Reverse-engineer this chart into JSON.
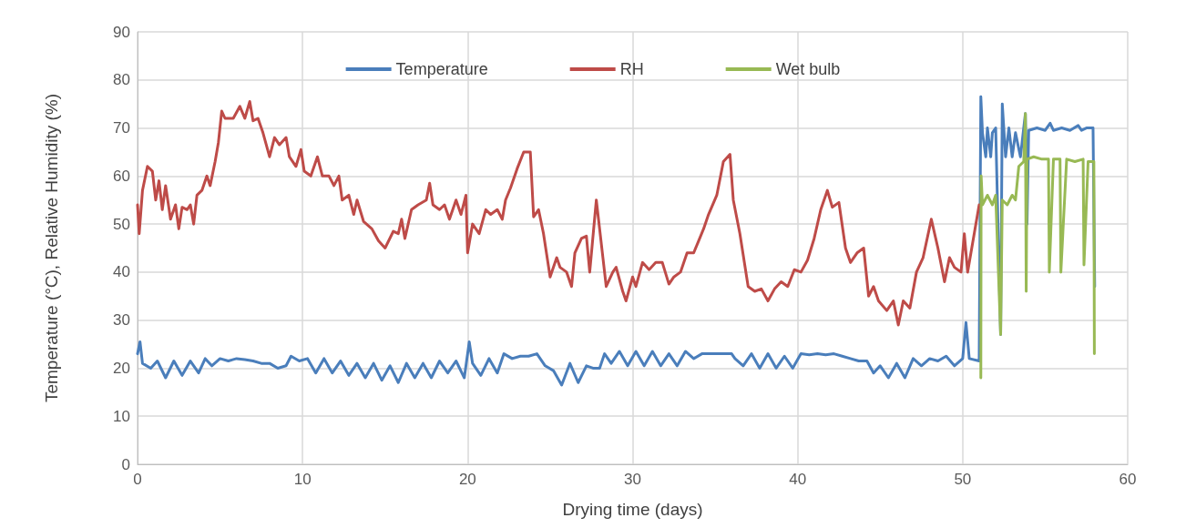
{
  "chart_data": {
    "type": "line",
    "xlabel": "Drying time (days)",
    "ylabel": "Temperature (°C), Relative Humidity (%)",
    "xlim": [
      0,
      60
    ],
    "xticks": [
      0,
      10,
      20,
      30,
      40,
      50,
      60
    ],
    "ylim": [
      0,
      90
    ],
    "yticks": [
      0,
      10,
      20,
      30,
      40,
      50,
      60,
      70,
      80,
      90
    ],
    "grid": true,
    "legend": "top",
    "marker": "none",
    "line_style": "solid",
    "series": [
      {
        "name": "Temperature",
        "color": "#4a7ebb",
        "x": [
          0,
          0.15,
          0.3,
          0.8,
          1.2,
          1.7,
          2.2,
          2.7,
          3.2,
          3.7,
          4.1,
          4.5,
          5,
          5.5,
          6,
          6.5,
          7,
          7.5,
          8,
          8.5,
          9,
          9.3,
          9.8,
          10.3,
          10.8,
          11.3,
          11.8,
          12.3,
          12.8,
          13.3,
          13.8,
          14.3,
          14.8,
          15.3,
          15.8,
          16.3,
          16.8,
          17.3,
          17.8,
          18.3,
          18.8,
          19.3,
          19.8,
          20.1,
          20.3,
          20.8,
          21.3,
          21.8,
          22.2,
          22.7,
          23.2,
          23.7,
          24.2,
          24.7,
          25.2,
          25.7,
          26.2,
          26.7,
          27.2,
          27.6,
          28,
          28.3,
          28.7,
          29.2,
          29.7,
          30.2,
          30.7,
          31.2,
          31.7,
          32.2,
          32.7,
          33.2,
          33.7,
          34.2,
          34.7,
          35.5,
          36,
          36.2,
          36.7,
          37.2,
          37.7,
          38.2,
          38.7,
          39.2,
          39.7,
          40.2,
          40.7,
          41.2,
          41.7,
          42.2,
          42.7,
          43.2,
          43.7,
          44.2,
          44.6,
          45,
          45.5,
          46,
          46.5,
          47,
          47.5,
          48,
          48.5,
          49,
          49.5,
          50,
          50.2,
          50.4,
          51,
          51.1,
          51.2,
          51.4,
          51.5,
          51.7,
          51.8,
          52,
          52.3,
          52.4,
          52.6,
          52.8,
          53,
          53.2,
          53.5,
          53.8,
          53.9,
          54,
          54.5,
          55,
          55.3,
          55.5,
          56,
          56.5,
          57,
          57.2,
          57.5,
          57.9,
          58,
          58.02
        ],
        "values": [
          23,
          25.5,
          21,
          20,
          21.5,
          18,
          21.5,
          18.5,
          21.5,
          19,
          22,
          20.5,
          22,
          21.5,
          22,
          21.8,
          21.5,
          21,
          21,
          20,
          20.5,
          22.5,
          21.5,
          22,
          19,
          22,
          19,
          21.5,
          18.5,
          21,
          18,
          21,
          17.5,
          20.5,
          17,
          21,
          18,
          21,
          18,
          21.5,
          19,
          21.5,
          18,
          25.5,
          21,
          18.5,
          22,
          19,
          23,
          22,
          22.5,
          22.5,
          23,
          20.5,
          19.5,
          16.5,
          21,
          17,
          20.5,
          20,
          20,
          23,
          21,
          23.5,
          20.5,
          23.5,
          20.5,
          23.5,
          20.5,
          23,
          20.5,
          23.5,
          22,
          23,
          23,
          23,
          23,
          22,
          20.5,
          23,
          20,
          23,
          20,
          22.5,
          20,
          23,
          22.8,
          23,
          22.8,
          23,
          22.5,
          22,
          21.5,
          21.5,
          19,
          20.5,
          18,
          21,
          18,
          22,
          20.5,
          22,
          21.5,
          22.5,
          20.5,
          22,
          29.5,
          22,
          21.5,
          76.5,
          69,
          64,
          70,
          64,
          69,
          70,
          27,
          75,
          64,
          70,
          64,
          69,
          64,
          73,
          50,
          69.5,
          70,
          69.5,
          71,
          69.5,
          70,
          69.5,
          70.5,
          69.5,
          70,
          70,
          37,
          37
        ]
      },
      {
        "name": "RH",
        "color": "#be4b48",
        "x": [
          0,
          0.1,
          0.3,
          0.6,
          0.9,
          1.1,
          1.3,
          1.5,
          1.7,
          2,
          2.3,
          2.5,
          2.7,
          3,
          3.2,
          3.4,
          3.6,
          3.9,
          4.2,
          4.4,
          4.7,
          4.9,
          5.1,
          5.3,
          5.8,
          6.2,
          6.5,
          6.8,
          7,
          7.3,
          7.6,
          8,
          8.3,
          8.6,
          9,
          9.2,
          9.6,
          9.9,
          10.1,
          10.5,
          10.9,
          11.2,
          11.6,
          11.9,
          12.2,
          12.4,
          12.8,
          13.1,
          13.3,
          13.7,
          14.2,
          14.6,
          15,
          15.5,
          15.8,
          16,
          16.2,
          16.6,
          17,
          17.5,
          17.7,
          17.9,
          18.3,
          18.6,
          18.9,
          19.3,
          19.6,
          19.9,
          20,
          20.3,
          20.7,
          21.1,
          21.4,
          21.8,
          22.1,
          22.3,
          22.6,
          23,
          23.4,
          23.8,
          24,
          24.3,
          24.6,
          25,
          25.4,
          25.6,
          26,
          26.3,
          26.5,
          26.9,
          27.2,
          27.4,
          27.8,
          28.2,
          28.4,
          28.8,
          29,
          29.4,
          29.6,
          30,
          30.2,
          30.6,
          31,
          31.4,
          31.8,
          32.2,
          32.5,
          32.9,
          33.3,
          33.7,
          34,
          34.3,
          34.6,
          35.1,
          35.5,
          35.9,
          36.1,
          36.5,
          37,
          37.4,
          37.8,
          38.2,
          38.6,
          39,
          39.4,
          39.8,
          40.2,
          40.6,
          41,
          41.4,
          41.8,
          42.1,
          42.5,
          42.9,
          43.2,
          43.6,
          44,
          44.3,
          44.6,
          44.9,
          45.4,
          45.8,
          46.1,
          46.4,
          46.8,
          47.2,
          47.6,
          48.1,
          48.5,
          48.9,
          49.2,
          49.5,
          49.9,
          50.1,
          50.3,
          50.8,
          51
        ],
        "values": [
          54,
          48,
          57,
          62,
          61,
          55,
          59,
          53,
          58,
          51,
          54,
          49,
          53.5,
          53,
          54,
          50,
          56,
          57,
          60,
          58,
          63,
          67,
          73.5,
          72,
          72,
          74.5,
          72,
          75.5,
          71.5,
          72,
          69,
          64,
          68,
          66.5,
          68,
          64,
          62,
          65.5,
          61,
          60,
          64,
          60,
          60,
          58,
          60,
          55,
          56,
          52,
          55,
          50.5,
          49,
          46.5,
          45,
          48.5,
          48,
          51,
          47,
          53,
          54,
          55,
          58.5,
          54,
          53,
          54,
          51,
          55,
          52,
          56,
          44,
          50,
          48,
          53,
          52,
          53,
          51,
          55,
          57.5,
          61.5,
          65,
          65,
          51.5,
          53,
          48,
          39,
          43,
          41,
          40,
          37,
          44,
          47,
          47.5,
          40,
          55,
          43,
          37,
          40,
          41,
          36,
          34,
          39,
          37,
          42,
          40.5,
          42,
          42,
          37.5,
          39,
          40,
          44,
          44,
          46.5,
          49,
          52,
          56,
          63,
          64.5,
          55,
          48,
          37,
          36,
          36.5,
          34,
          36.5,
          38,
          37,
          40.5,
          40,
          42.5,
          47,
          53,
          57,
          53.5,
          54.5,
          45,
          42,
          44,
          45,
          35,
          37,
          34,
          32,
          34,
          29,
          34,
          32.5,
          40,
          43,
          51,
          45,
          38,
          43,
          41,
          40,
          48,
          40,
          50,
          54
        ]
      },
      {
        "name": "Wet bulb",
        "color": "#98b954",
        "x": [
          51.1,
          51.12,
          51.2,
          51.5,
          51.8,
          52,
          52.3,
          52.4,
          52.7,
          53,
          53.2,
          53.4,
          53.7,
          53.8,
          53.85,
          53.9,
          54.3,
          54.8,
          55.2,
          55.25,
          55.5,
          55.9,
          55.95,
          56.3,
          56.8,
          57.3,
          57.35,
          57.6,
          57.95,
          57.98
        ],
        "values": [
          18,
          60,
          54,
          56,
          54,
          56,
          27,
          55,
          54,
          56,
          55,
          62,
          63,
          73,
          36,
          63.5,
          64,
          63.5,
          63.5,
          40,
          63.5,
          63.5,
          40,
          63.5,
          63,
          63.5,
          41.5,
          63,
          63,
          23
        ]
      }
    ]
  }
}
